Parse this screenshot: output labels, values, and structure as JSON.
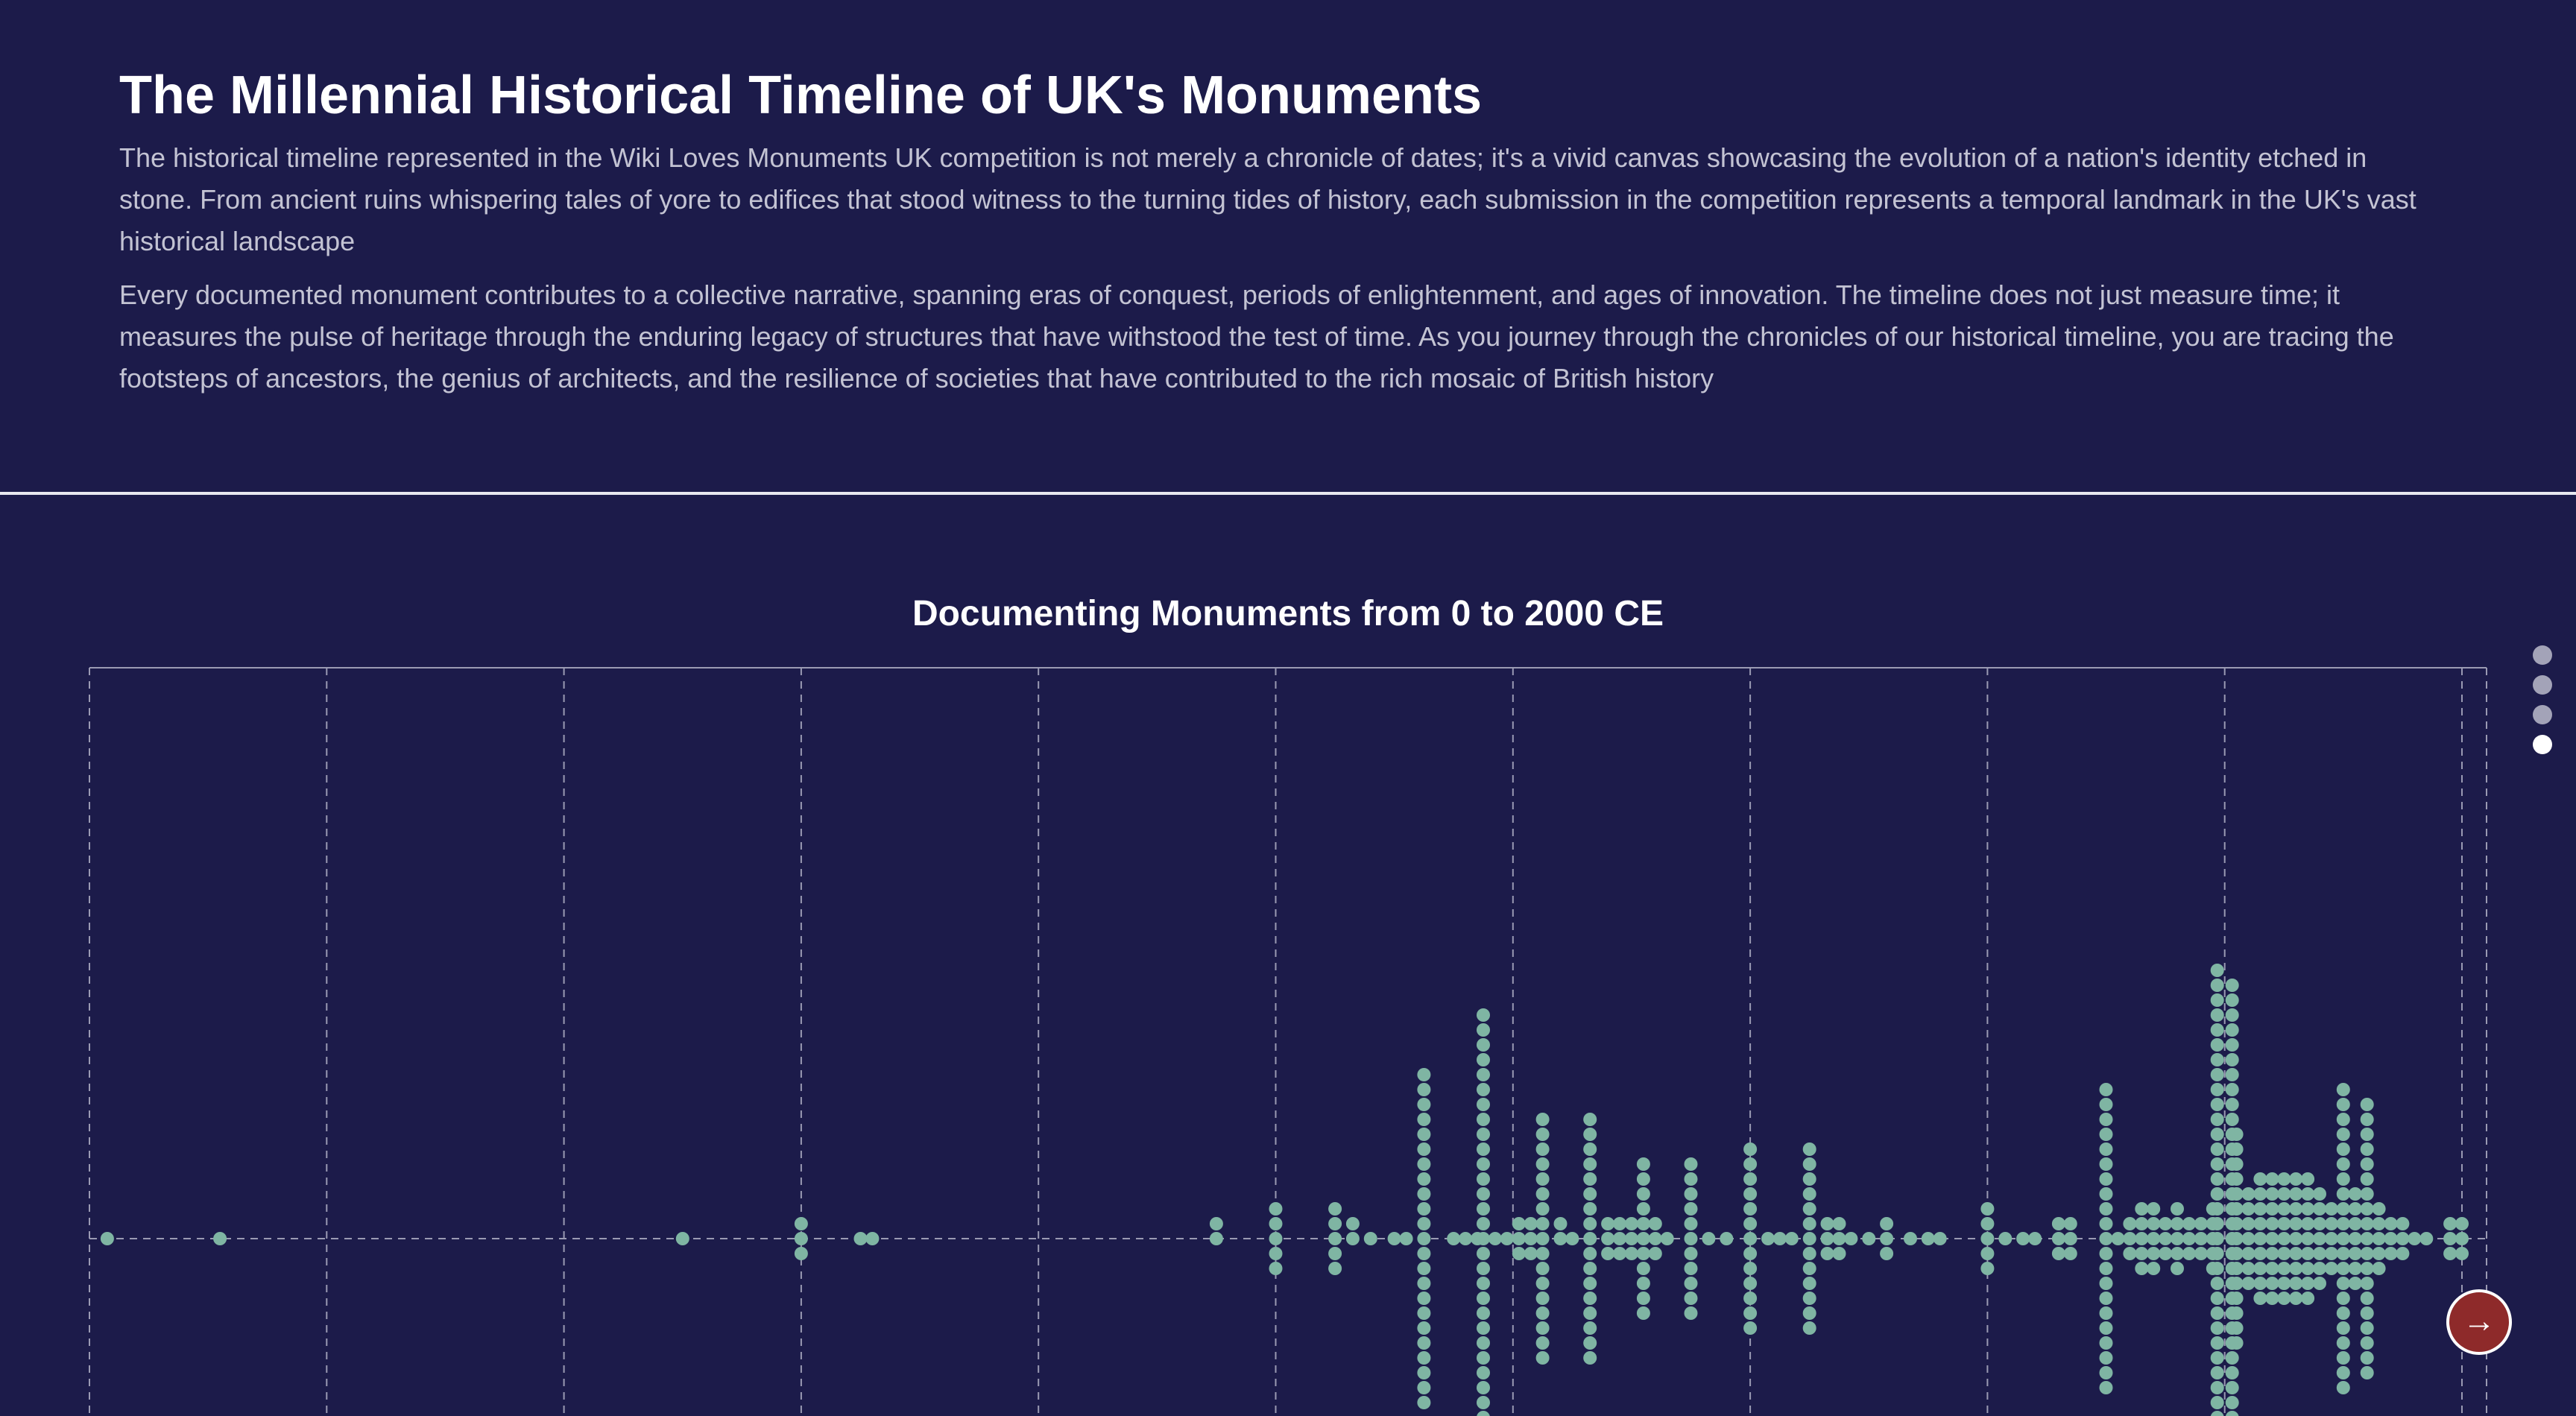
{
  "header": {
    "title": "The Millennial Historical Timeline of UK's Monuments",
    "paragraph_1": "The historical timeline represented in the Wiki Loves Monuments UK competition is not merely a chronicle of dates; it's a vivid canvas showcasing the evolution of a nation's identity etched in stone. From ancient ruins whispering tales of yore to edifices that stood witness to the turning tides of history, each submission in the competition represents a temporal landmark in the UK's vast historical landscape",
    "paragraph_2": "Every documented monument contributes to a collective narrative, spanning eras of conquest, periods of enlightenment, and ages of innovation. The timeline does not just measure time; it measures the pulse of heritage through the enduring legacy of structures that have withstood the test of time. As you journey through the chronicles of our historical timeline, you are tracing the footsteps of ancestors, the genius of architects, and the resilience of societies that have contributed to the rich mosaic of British history"
  },
  "chart_data": {
    "type": "scatter",
    "title": "Documenting Monuments from 0 to 2000 CE",
    "xlabel": "",
    "ylabel": "",
    "xlim": [
      0,
      2025
    ],
    "grid": true,
    "x_gridlines": [
      0,
      200,
      400,
      600,
      800,
      1000,
      1200,
      1400,
      1600,
      1800,
      2000
    ],
    "description_counts_note": "",
    "year_counts": [
      [
        15,
        1
      ],
      [
        110,
        1
      ],
      [
        500,
        1
      ],
      [
        600,
        3
      ],
      [
        650,
        1
      ],
      [
        660,
        1
      ],
      [
        950,
        2
      ],
      [
        1000,
        5
      ],
      [
        1050,
        5
      ],
      [
        1065,
        2
      ],
      [
        1080,
        1
      ],
      [
        1100,
        1
      ],
      [
        1110,
        1
      ],
      [
        1125,
        23
      ],
      [
        1150,
        1
      ],
      [
        1160,
        1
      ],
      [
        1170,
        1
      ],
      [
        1175,
        31
      ],
      [
        1185,
        1
      ],
      [
        1195,
        1
      ],
      [
        1205,
        3
      ],
      [
        1215,
        3
      ],
      [
        1225,
        17
      ],
      [
        1240,
        2
      ],
      [
        1250,
        1
      ],
      [
        1265,
        17
      ],
      [
        1280,
        3
      ],
      [
        1290,
        3
      ],
      [
        1300,
        3
      ],
      [
        1310,
        11
      ],
      [
        1320,
        3
      ],
      [
        1330,
        1
      ],
      [
        1350,
        11
      ],
      [
        1365,
        1
      ],
      [
        1380,
        1
      ],
      [
        1400,
        13
      ],
      [
        1415,
        1
      ],
      [
        1425,
        1
      ],
      [
        1435,
        1
      ],
      [
        1450,
        13
      ],
      [
        1465,
        3
      ],
      [
        1475,
        3
      ],
      [
        1485,
        1
      ],
      [
        1500,
        1
      ],
      [
        1515,
        3
      ],
      [
        1535,
        1
      ],
      [
        1550,
        1
      ],
      [
        1560,
        1
      ],
      [
        1600,
        5
      ],
      [
        1615,
        1
      ],
      [
        1630,
        1
      ],
      [
        1640,
        1
      ],
      [
        1660,
        3
      ],
      [
        1670,
        3
      ],
      [
        1700,
        21
      ],
      [
        1710,
        1
      ],
      [
        1720,
        3
      ],
      [
        1730,
        5
      ],
      [
        1740,
        5
      ],
      [
        1750,
        3
      ],
      [
        1760,
        5
      ],
      [
        1770,
        3
      ],
      [
        1780,
        3
      ],
      [
        1790,
        5
      ],
      [
        1800,
        71
      ],
      [
        1810,
        15
      ],
      [
        1820,
        7
      ],
      [
        1830,
        9
      ],
      [
        1840,
        9
      ],
      [
        1850,
        9
      ],
      [
        1860,
        9
      ],
      [
        1870,
        9
      ],
      [
        1880,
        7
      ],
      [
        1890,
        5
      ],
      [
        1900,
        21
      ],
      [
        1910,
        7
      ],
      [
        1920,
        19
      ],
      [
        1930,
        5
      ],
      [
        1940,
        3
      ],
      [
        1950,
        3
      ],
      [
        1960,
        1
      ],
      [
        1970,
        1
      ],
      [
        1990,
        3
      ],
      [
        2000,
        3
      ]
    ]
  },
  "colors": {
    "background": "#1c1b4a",
    "dot": "#7fb5a3",
    "grid": "#9a9ab3",
    "next_button": "#8e2a2a"
  },
  "nav": {
    "dots": 4,
    "active_dot": 4
  },
  "next_button": {
    "icon": "arrow-right-icon",
    "glyph": "→"
  }
}
